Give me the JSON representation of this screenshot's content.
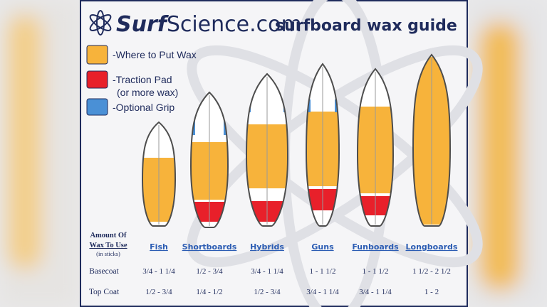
{
  "header": {
    "logo_bold": "Surf",
    "logo_rest": "Science.com",
    "title": "surfboard wax guide"
  },
  "legend": [
    {
      "label": "-Where to Put Wax"
    },
    {
      "label": "-Traction Pad",
      "note": "(or more wax)"
    },
    {
      "label": "-Optional Grip"
    }
  ],
  "table": {
    "corner": [
      "Amount Of",
      "Wax To Use",
      "(in sticks)"
    ],
    "columns": [
      "Fish",
      "Shortboards",
      "Hybrids",
      "Guns",
      "Funboards",
      "Longboards"
    ],
    "rows": [
      {
        "label": "Basecoat",
        "cells": [
          "3/4 - 1 1/4",
          "1/2 - 3/4",
          "3/4 - 1 1/4",
          "1 - 1 1/2",
          "1 - 1 1/2",
          "1 1/2 - 2 1/2"
        ]
      },
      {
        "label": "Top Coat",
        "cells": [
          "1/2 - 3/4",
          "1/4 - 1/2",
          "1/2 - 3/4",
          "3/4 - 1 1/4",
          "3/4 - 1 1/4",
          "1 - 2"
        ]
      }
    ]
  }
}
